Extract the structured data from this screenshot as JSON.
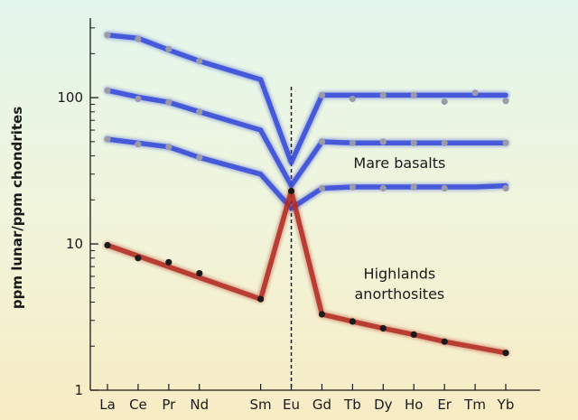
{
  "chart_data": {
    "type": "line",
    "ylabel": "ppm lunar/ppm chondrites",
    "yscale": "log",
    "ylim": [
      1,
      350
    ],
    "yticks": [
      1,
      10,
      100
    ],
    "categories": [
      "La",
      "Ce",
      "Pr",
      "Nd",
      "Sm",
      "Eu",
      "Gd",
      "Tb",
      "Dy",
      "Ho",
      "Er",
      "Tm",
      "Yb"
    ],
    "category_positions": [
      57,
      58,
      59,
      60,
      62,
      63,
      64,
      65,
      66,
      67,
      68,
      69,
      70
    ],
    "reference_line": {
      "category": "Eu",
      "style": "dashed",
      "color": "#1a1a1a"
    },
    "grid": false,
    "series": [
      {
        "color": "#3448d8",
        "line_x": [
          "La",
          "Ce",
          "Pr",
          "Nd",
          "Sm",
          "Eu",
          "Gd",
          "Tb",
          "Dy",
          "Ho",
          "Er",
          "Tm",
          "Yb"
        ],
        "line_y": [
          268,
          255,
          212,
          178,
          133,
          36,
          104,
          104,
          104,
          104,
          104,
          104,
          104
        ],
        "points_x": [
          "La",
          "Ce",
          "Pr",
          "Nd",
          "Gd",
          "Tb",
          "Dy",
          "Ho",
          "Er",
          "Tm",
          "Yb"
        ],
        "points_y": [
          268,
          252,
          215,
          178,
          104,
          98,
          104,
          104,
          94,
          108,
          95
        ],
        "point_color": "#9a9aa8"
      },
      {
        "color": "#3448d8",
        "line_x": [
          "La",
          "Ce",
          "Pr",
          "Nd",
          "Sm",
          "Eu",
          "Gd",
          "Tb",
          "Dy",
          "Ho",
          "Er",
          "Tm",
          "Yb"
        ],
        "line_y": [
          112,
          101,
          93,
          80,
          60,
          25,
          50,
          49,
          49,
          49,
          49,
          49,
          49
        ],
        "points_x": [
          "La",
          "Ce",
          "Pr",
          "Nd",
          "Gd",
          "Tb",
          "Dy",
          "Ho",
          "Er",
          "Yb"
        ],
        "points_y": [
          112,
          98,
          93,
          80,
          50,
          49,
          50,
          49,
          49,
          49
        ],
        "point_color": "#9a9aa8"
      },
      {
        "color": "#3448d8",
        "line_x": [
          "La",
          "Ce",
          "Pr",
          "Nd",
          "Sm",
          "Eu",
          "Gd",
          "Tb",
          "Dy",
          "Ho",
          "Er",
          "Tm",
          "Yb"
        ],
        "line_y": [
          52,
          49,
          46,
          39,
          30,
          17.5,
          24,
          24.5,
          24.5,
          24.5,
          24.5,
          24.5,
          25
        ],
        "points_x": [
          "La",
          "Ce",
          "Pr",
          "Nd",
          "Gd",
          "Tb",
          "Dy",
          "Ho",
          "Er",
          "Yb"
        ],
        "points_y": [
          52,
          48,
          46,
          39,
          24,
          24.5,
          24,
          24.5,
          24,
          24
        ],
        "point_color": "#9a9aa8"
      },
      {
        "color": "#b22a22",
        "line_x": [
          "La",
          "Sm",
          "Eu",
          "Gd",
          "Tb",
          "Dy",
          "Ho",
          "Er",
          "Yb"
        ],
        "line_y": [
          9.8,
          4.2,
          23,
          3.3,
          2.95,
          2.65,
          2.4,
          2.15,
          1.8
        ],
        "points_x": [
          "La",
          "Ce",
          "Pr",
          "Nd",
          "Sm",
          "Eu",
          "Gd",
          "Tb",
          "Dy",
          "Ho",
          "Er",
          "Yb"
        ],
        "points_y": [
          9.8,
          8.0,
          7.5,
          6.3,
          4.2,
          23,
          3.3,
          2.95,
          2.65,
          2.4,
          2.15,
          1.8
        ],
        "point_color": "#1a1a1a"
      }
    ],
    "annotations": [
      {
        "text": "Mare basalts",
        "x": "Tb",
        "y": 33
      },
      {
        "text": "Highlands",
        "x": "Tb",
        "y": 5.8
      },
      {
        "text": "anorthosites",
        "x": "Tb",
        "y": 4.2
      }
    ]
  }
}
